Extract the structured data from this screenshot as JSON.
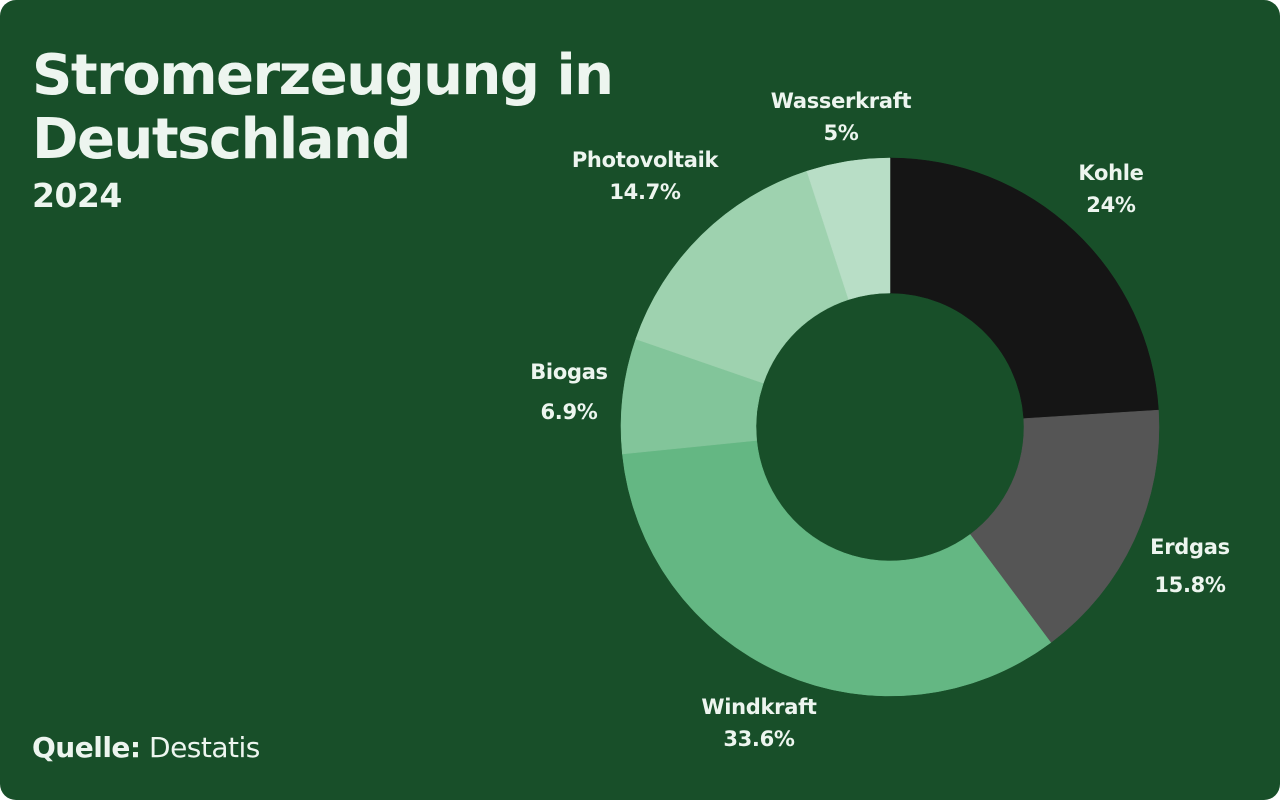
{
  "header": {
    "title": "Stromerzeugung in Deutschland",
    "subtitle": "2024"
  },
  "footer": {
    "source_label": "Quelle:",
    "source_value": "Destatis"
  },
  "colors": {
    "background": "#184f29",
    "text": "#edf5ef"
  },
  "chart_data": {
    "type": "pie",
    "variant": "donut",
    "title": "Stromerzeugung in Deutschland",
    "subtitle": "2024",
    "source": "Destatis",
    "categories": [
      "Kohle",
      "Erdgas",
      "Windkraft",
      "Biogas",
      "Photovoltaik",
      "Wasserkraft"
    ],
    "values": [
      24,
      15.8,
      33.6,
      6.9,
      14.7,
      5
    ],
    "value_labels": [
      "24%",
      "15.8%",
      "33.6%",
      "6.9%",
      "14.7%",
      "5%"
    ],
    "colors": [
      "#151515",
      "#555555",
      "#64b783",
      "#82c59a",
      "#9ed2af",
      "#b8dec6"
    ],
    "unit": "%",
    "start_angle": "top, clockwise",
    "legend": "none (direct labels)"
  },
  "slices": [
    {
      "name": "Kohle",
      "pct": "24%"
    },
    {
      "name": "Erdgas",
      "pct": "15.8%"
    },
    {
      "name": "Windkraft",
      "pct": "33.6%"
    },
    {
      "name": "Biogas",
      "pct": "6.9%"
    },
    {
      "name": "Photovoltaik",
      "pct": "14.7%"
    },
    {
      "name": "Wasserkraft",
      "pct": "5%"
    }
  ]
}
